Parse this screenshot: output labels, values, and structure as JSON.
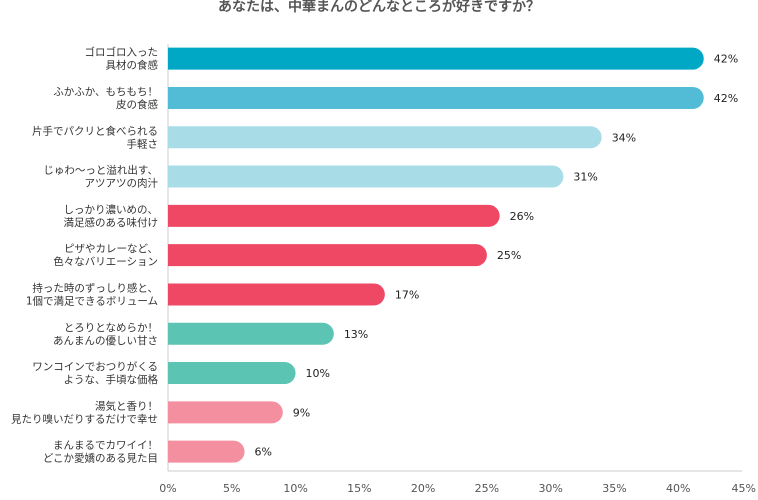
{
  "chart_data": {
    "type": "bar",
    "orientation": "horizontal",
    "title": "あなたは、中華まんのどんなところが好きですか？",
    "categories": [
      [
        "ゴロゴロ入った",
        "具材の食感"
      ],
      [
        "ふかふか、もちもち！",
        "皮の食感"
      ],
      [
        "片手でパクリと食べられる",
        "手軽さ"
      ],
      [
        "じゅわ〜っと溢れ出す、",
        "アツアツの肉汁"
      ],
      [
        "しっかり濃いめの、",
        "満足感のある味付け"
      ],
      [
        "ピザやカレーなど、",
        "色々なバリエーション"
      ],
      [
        "持った時のずっしり感と、",
        "1個で満足できるボリューム"
      ],
      [
        "とろりとなめらか！",
        "あんまんの優しい甘さ"
      ],
      [
        "ワンコインでおつりがくる",
        "ような、手頃な価格"
      ],
      [
        "湯気と香り！",
        "見たり嗅いだりするだけで幸せ"
      ],
      [
        "まんまるでカワイイ！",
        "どこか愛嬌のある見た目"
      ]
    ],
    "values": [
      42,
      42,
      34,
      31,
      26,
      25,
      17,
      13,
      10,
      9,
      6
    ],
    "value_labels": [
      "42%",
      "42%",
      "34%",
      "31%",
      "26%",
      "25%",
      "17%",
      "13%",
      "10%",
      "9%",
      "6%"
    ],
    "colors": [
      "#00a8c6",
      "#52bcd6",
      "#a8dde8",
      "#a8dde8",
      "#ef4864",
      "#ef4864",
      "#ef4864",
      "#5cc4b2",
      "#5cc4b2",
      "#f48fa0",
      "#f48fa0"
    ],
    "xlim": [
      0,
      45
    ],
    "xticks": [
      0,
      5,
      10,
      15,
      20,
      25,
      30,
      35,
      40,
      45
    ],
    "xtick_labels": [
      "0%",
      "5%",
      "10%",
      "15%",
      "20%",
      "25%",
      "30%",
      "35%",
      "40%",
      "45%"
    ],
    "xlabel": "",
    "ylabel": "",
    "grid": false,
    "legend": "none"
  }
}
